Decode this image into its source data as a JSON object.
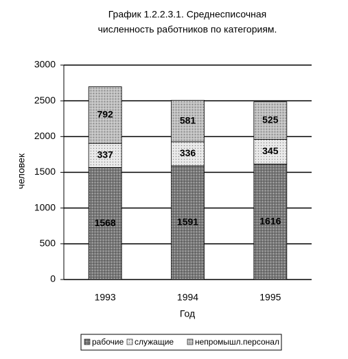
{
  "chart_data": {
    "type": "stacked_bar",
    "title": [
      "График 1.2.2.3.1.  Среднесписочная",
      "численность работников по категориям."
    ],
    "x_label": "Год",
    "y_label": "человек",
    "categories": [
      "1993",
      "1994",
      "1995"
    ],
    "series": [
      {
        "name": "рабочие",
        "color": "#7a7a7a",
        "values": [
          1568,
          1591,
          1616
        ]
      },
      {
        "name": "служащие",
        "color": "#e6e6e6",
        "values": [
          337,
          336,
          345
        ]
      },
      {
        "name": "непромышл.персонал",
        "color": "#bdbdbd",
        "values": [
          792,
          581,
          525
        ]
      }
    ],
    "ylim": [
      0,
      3000
    ],
    "yticks": [
      0,
      500,
      1000,
      1500,
      2000,
      2500,
      3000
    ],
    "grid": true
  }
}
